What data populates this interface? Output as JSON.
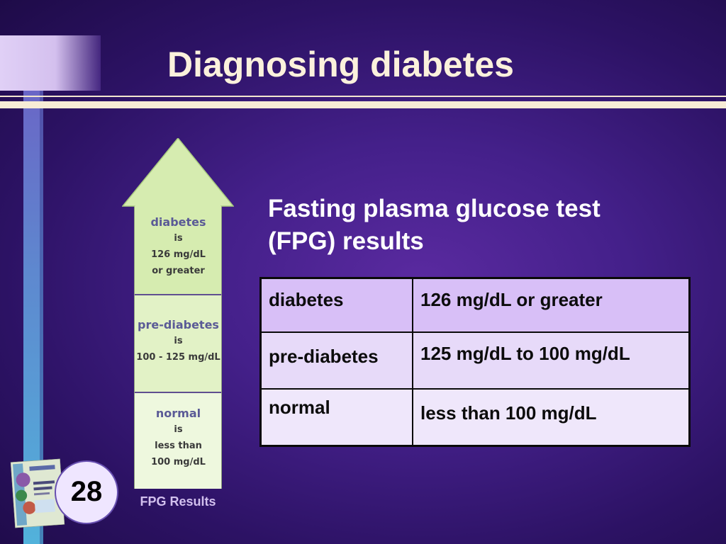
{
  "slide": {
    "title": "Diagnosing diabetes",
    "subtitle_line1": "Fasting plasma glucose test",
    "subtitle_line2": "(FPG) results",
    "page_number": "28"
  },
  "table": {
    "rows": [
      {
        "category": "diabetes",
        "value": "126 mg/dL or greater"
      },
      {
        "category": "pre-diabetes",
        "value": "125 mg/dL to 100 mg/dL"
      },
      {
        "category": "normal",
        "value": "less than 100 mg/dL"
      }
    ]
  },
  "arrow": {
    "label": "FPG Results",
    "segments": [
      {
        "head": "diabetes",
        "lines": [
          "is",
          "126 mg/dL",
          "or greater"
        ]
      },
      {
        "head": "pre-diabetes",
        "lines": [
          "is",
          "100 - 125 mg/dL"
        ]
      },
      {
        "head": "normal",
        "lines": [
          "is",
          "less than",
          "100 mg/dL"
        ]
      }
    ]
  },
  "colors": {
    "background": "#44208a",
    "arrow_fill": "#d6ecb0",
    "table_header_row": "#d8bff7",
    "title_text": "#fbf1dc"
  }
}
